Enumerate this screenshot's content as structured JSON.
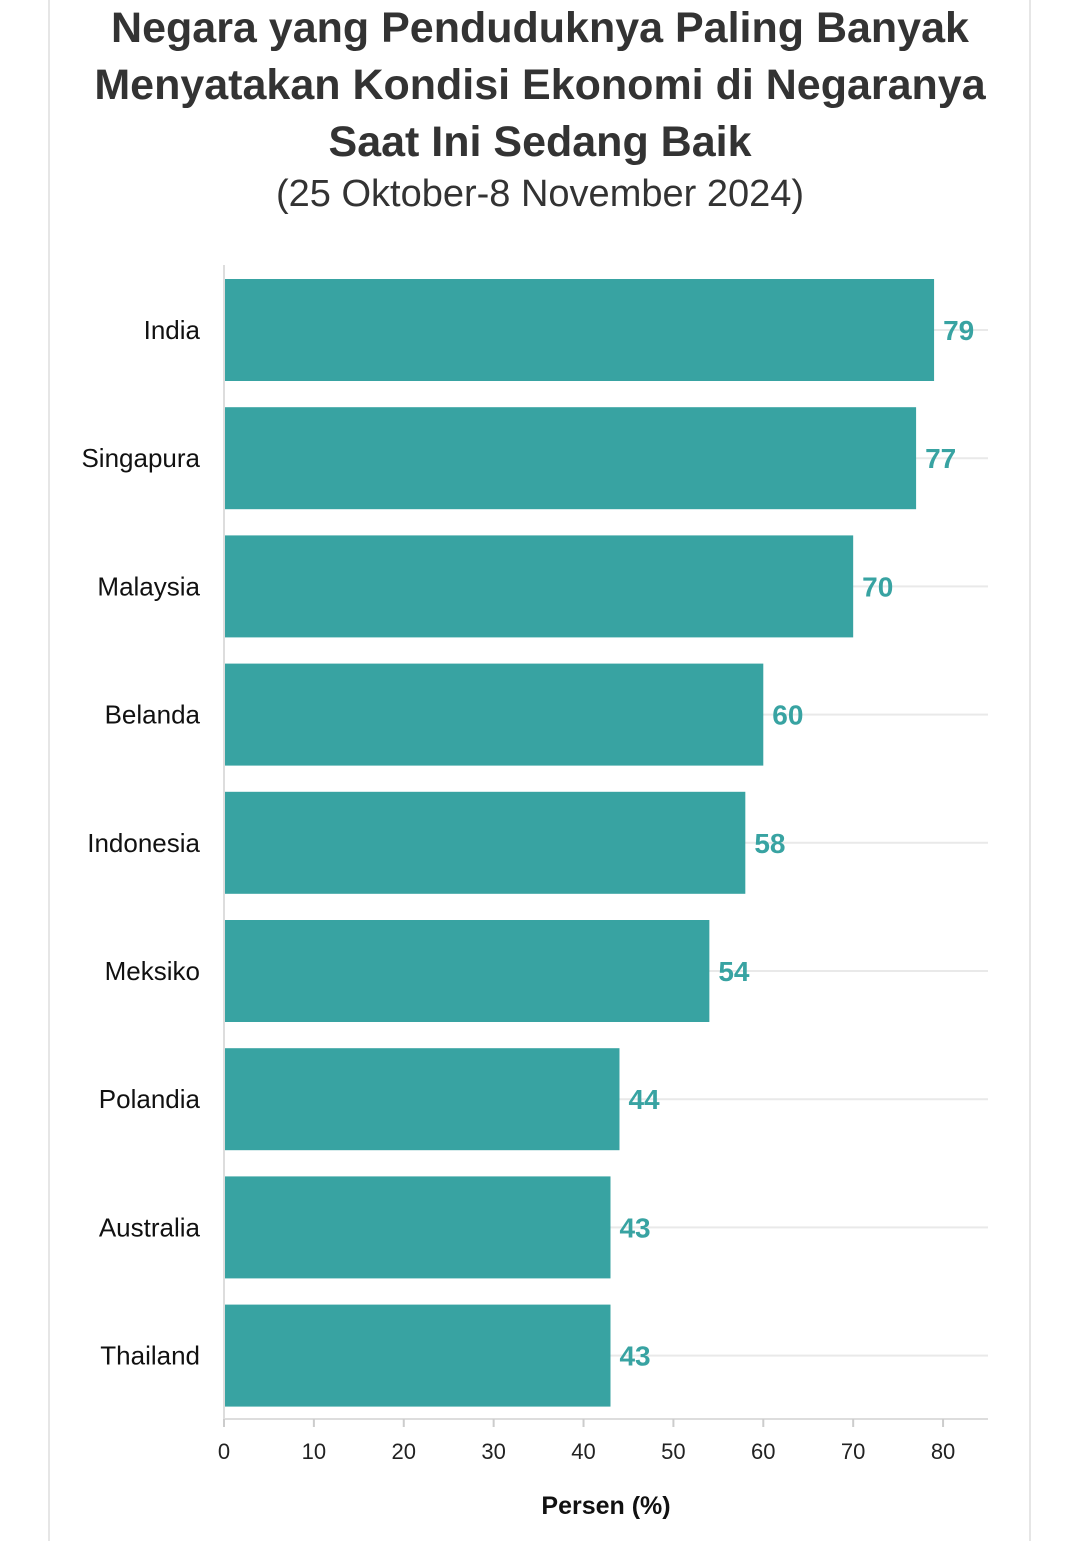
{
  "chart_data": {
    "type": "bar",
    "orientation": "horizontal",
    "title": "Negara yang Penduduknya Paling Banyak Menyatakan Kondisi Ekonomi di Negaranya Saat Ini Sedang Baik",
    "subtitle": "(25 Oktober-8 November 2024)",
    "xlabel": "Persen (%)",
    "ylabel": "",
    "categories": [
      "India",
      "Singapura",
      "Malaysia",
      "Belanda",
      "Indonesia",
      "Meksiko",
      "Polandia",
      "Australia",
      "Thailand"
    ],
    "values": [
      79,
      77,
      70,
      60,
      58,
      54,
      44,
      43,
      43
    ],
    "xlim": [
      0,
      85
    ],
    "xticks": [
      0,
      10,
      20,
      30,
      40,
      50,
      60,
      70,
      80
    ],
    "bar_color": "#38a3a2",
    "label_color": "#38a3a2",
    "grid": true,
    "data_labels": true
  }
}
